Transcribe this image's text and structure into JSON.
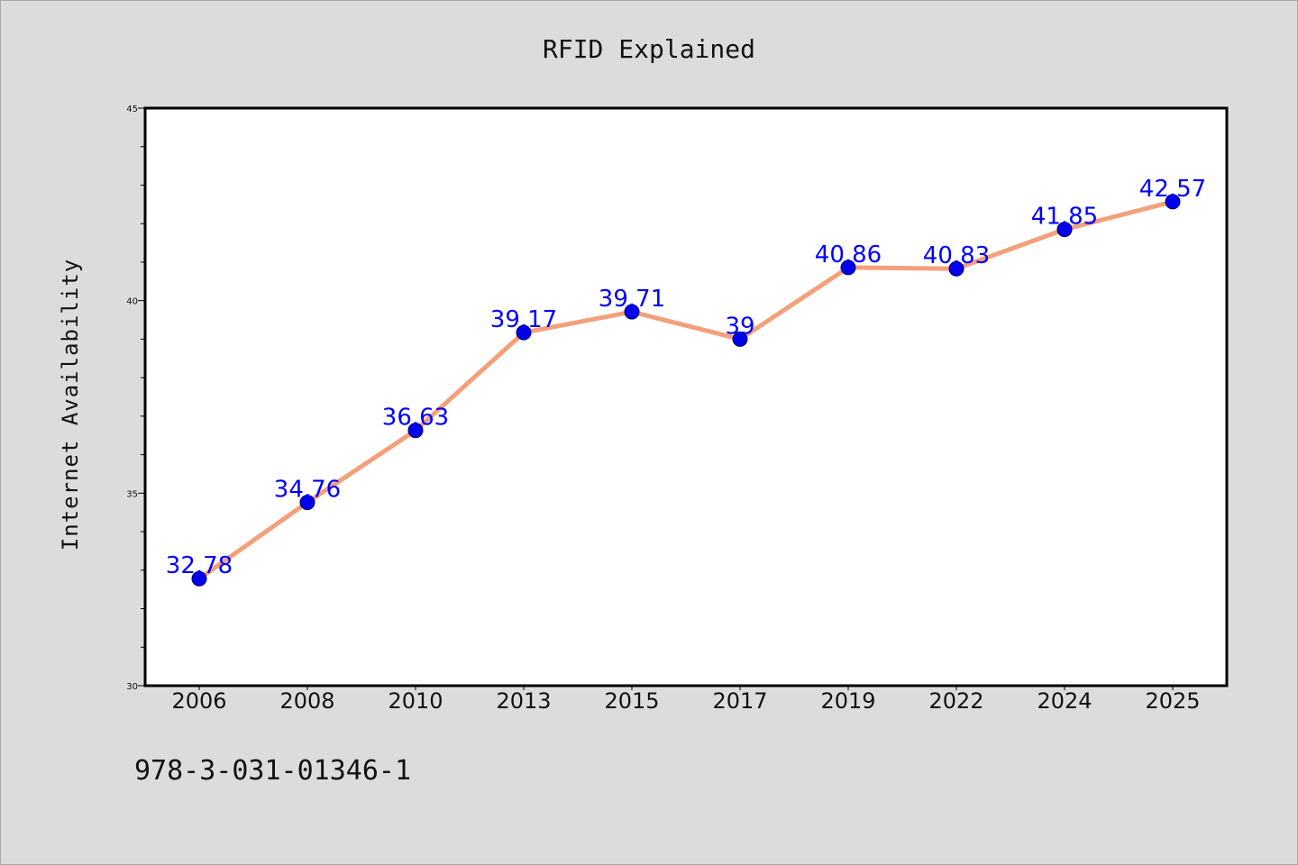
{
  "chart_data": {
    "type": "line",
    "title": "RFID Explained",
    "xlabel": "",
    "ylabel": "Internet Availability",
    "categories": [
      "2006",
      "2008",
      "2010",
      "2013",
      "2015",
      "2017",
      "2019",
      "2022",
      "2024",
      "2025"
    ],
    "series": [
      {
        "values": [
          32.78,
          34.76,
          36.63,
          39.17,
          39.71,
          39,
          40.86,
          40.83,
          41.85,
          42.57
        ],
        "labels": [
          "32.78",
          "34.76",
          "36.63",
          "39.17",
          "39.71",
          "39",
          "40.86",
          "40.83",
          "41.85",
          "42.57"
        ],
        "line_color": "#f4a07a",
        "marker_color": "#0000ee"
      }
    ],
    "ylim": [
      30,
      45
    ],
    "yticks": [
      "30",
      "35",
      "40",
      "45"
    ],
    "grid": false,
    "legend": "none",
    "label_color": "#0000ff",
    "plot_background": "#ffffff",
    "page_background": "#dcdcdc"
  },
  "footer": {
    "text": "978-3-031-01346-1"
  }
}
